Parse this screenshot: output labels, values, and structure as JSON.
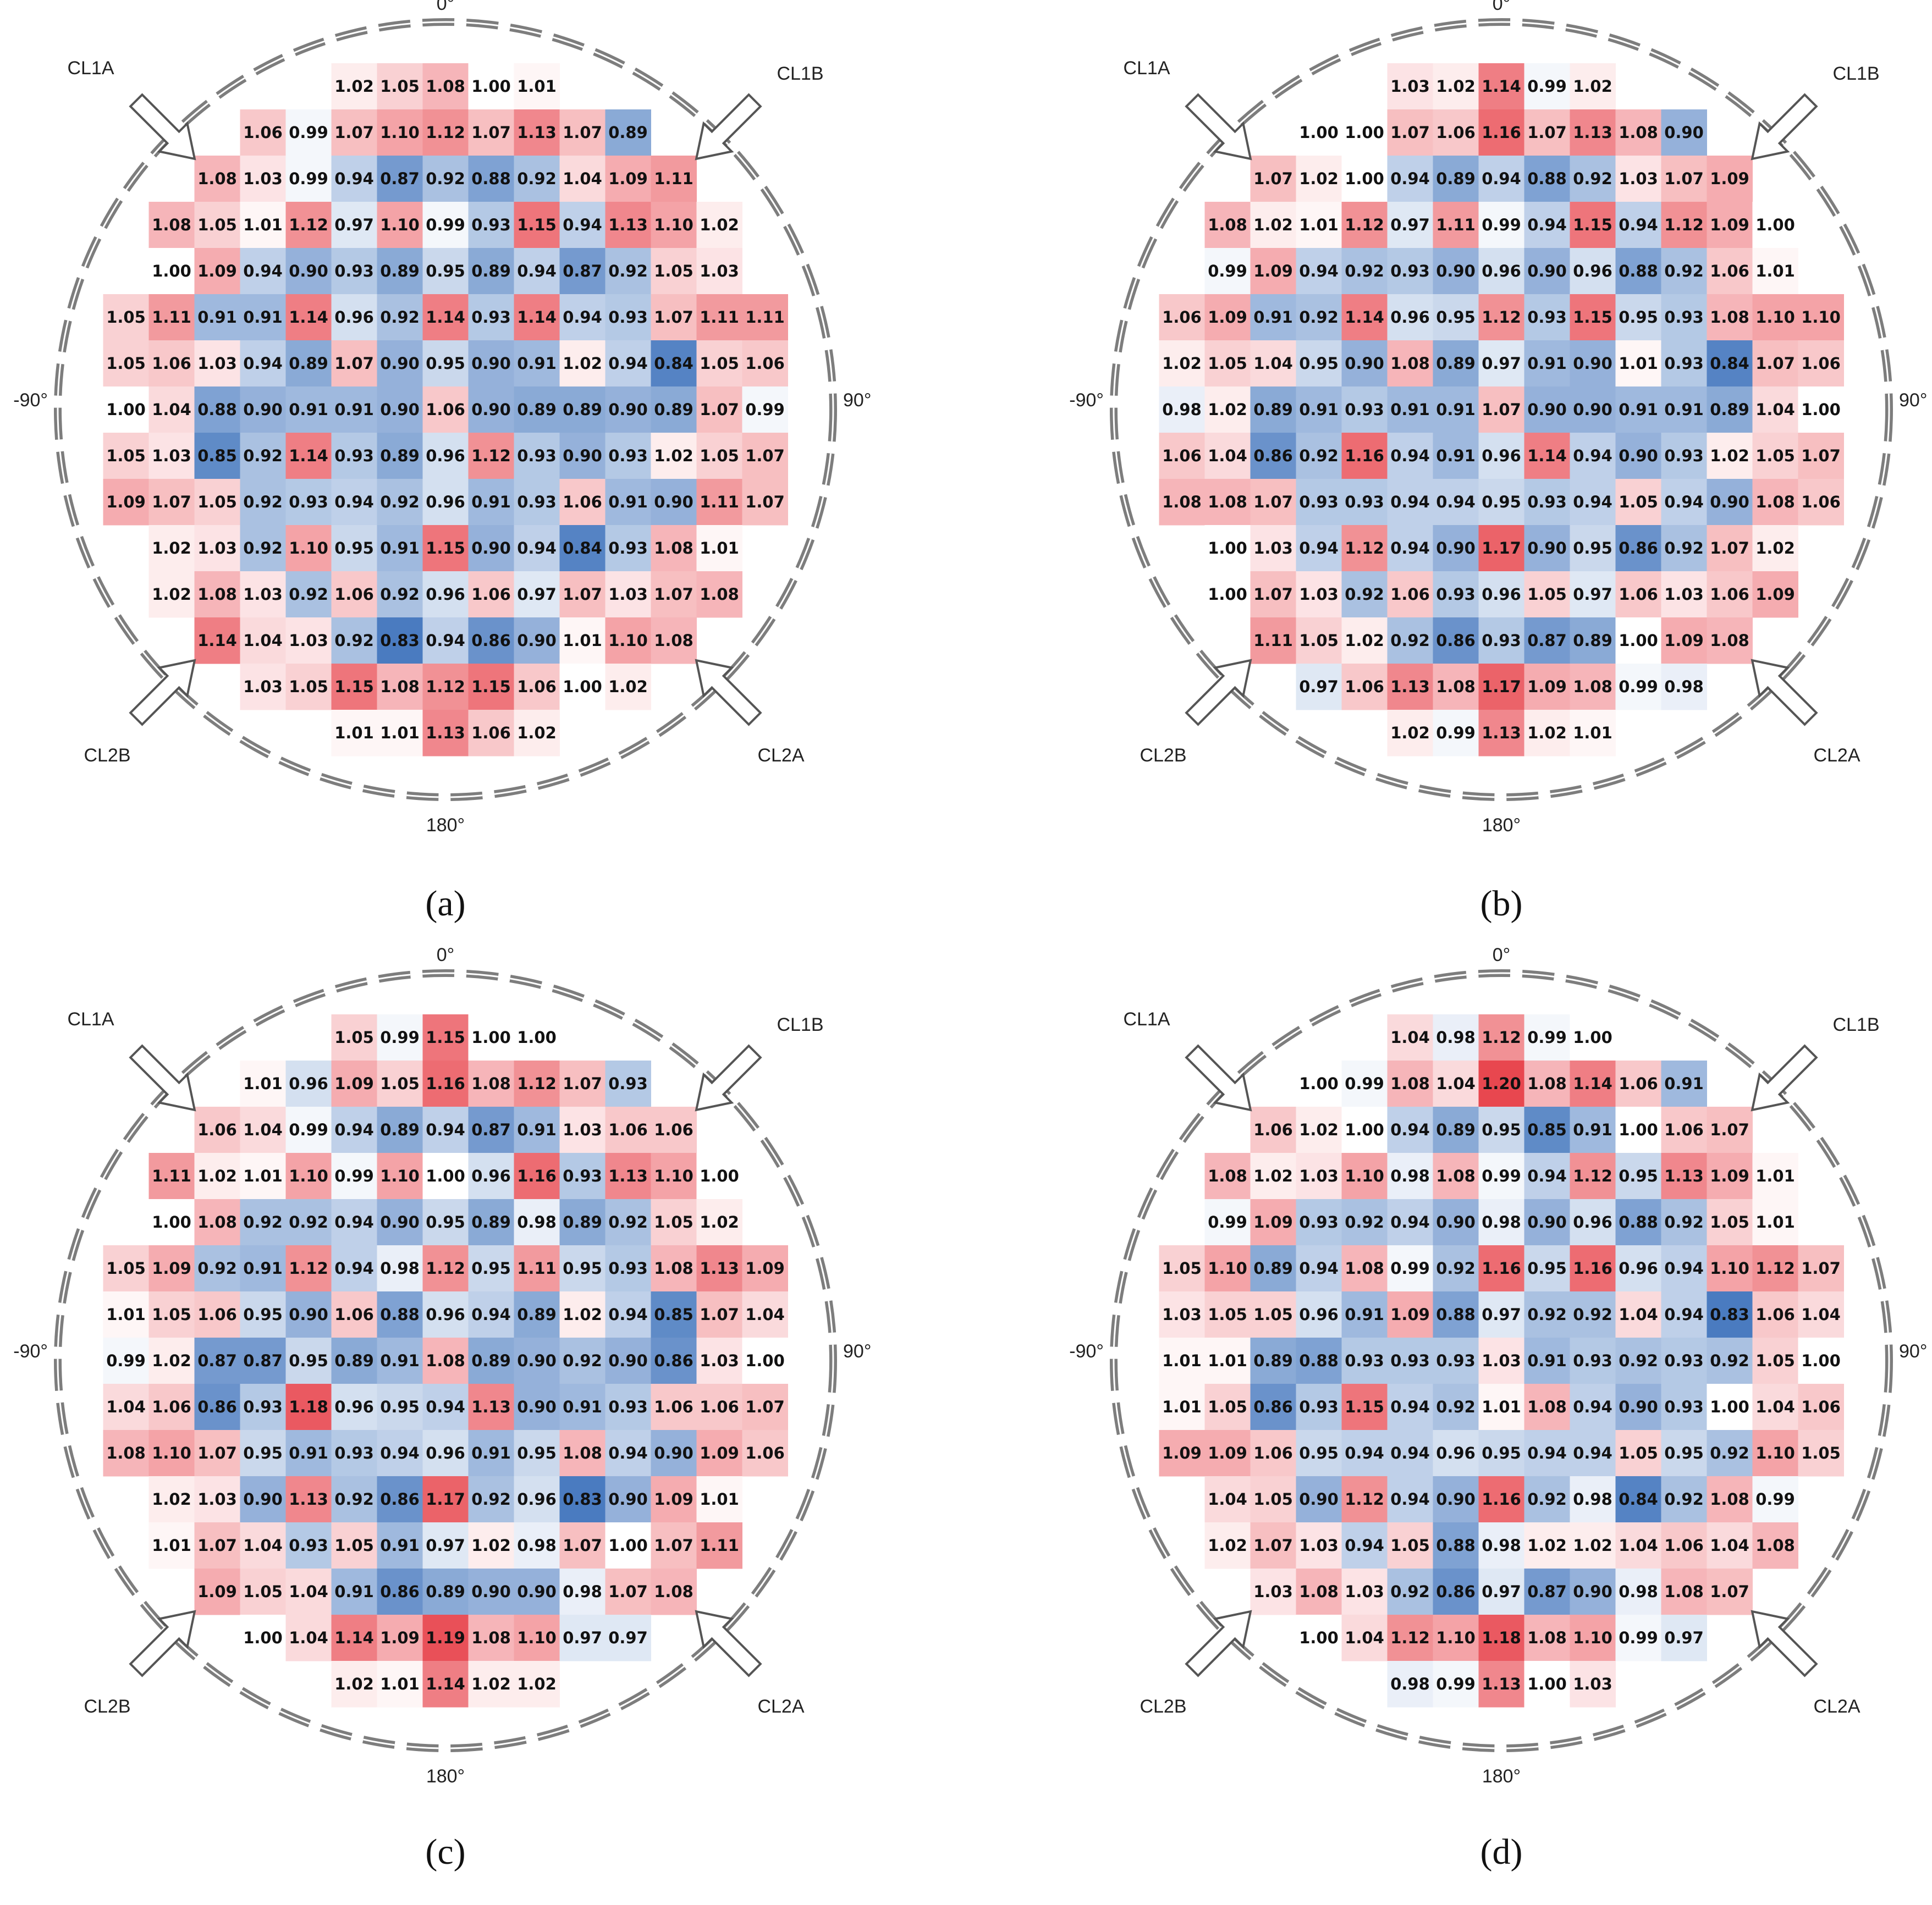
{
  "figure": {
    "angle_labels": {
      "top": "0°",
      "bottom": "180°",
      "left": "-90°",
      "right": "90°"
    },
    "arrow_labels": {
      "top_left": "CL1A",
      "top_right": "CL1B",
      "bottom_left": "CL2B",
      "bottom_right": "CL2A"
    },
    "colors": {
      "low": "#4a7bc0",
      "mid": "#ffffff",
      "high": "#e8474f",
      "ring": "#7d7d7d",
      "arrow": "#555555",
      "text": "#111111"
    }
  },
  "chart_data": [
    {
      "type": "heatmap",
      "caption": "(a)",
      "color_scale": {
        "min": 0.83,
        "center": 1.0,
        "max": 1.2
      },
      "rows": [
        {
          "start": 5,
          "values": [
            1.02,
            1.05,
            1.08,
            1.0,
            1.01
          ]
        },
        {
          "start": 3,
          "values": [
            1.06,
            0.99,
            1.07,
            1.1,
            1.12,
            1.07,
            1.13,
            1.07,
            0.89
          ]
        },
        {
          "start": 2,
          "values": [
            1.08,
            1.03,
            0.99,
            0.94,
            0.87,
            0.92,
            0.88,
            0.92,
            1.04,
            1.09,
            1.11
          ]
        },
        {
          "start": 1,
          "values": [
            1.08,
            1.05,
            1.01,
            1.12,
            0.97,
            1.1,
            0.99,
            0.93,
            1.15,
            0.94,
            1.13,
            1.1,
            1.02
          ]
        },
        {
          "start": 1,
          "values": [
            1.0,
            1.09,
            0.94,
            0.9,
            0.93,
            0.89,
            0.95,
            0.89,
            0.94,
            0.87,
            0.92,
            1.05,
            1.03
          ]
        },
        {
          "start": 0,
          "values": [
            1.05,
            1.11,
            0.91,
            0.91,
            1.14,
            0.96,
            0.92,
            1.14,
            0.93,
            1.14,
            0.94,
            0.93,
            1.07,
            1.11,
            1.11
          ]
        },
        {
          "start": 0,
          "values": [
            1.05,
            1.06,
            1.03,
            0.94,
            0.89,
            1.07,
            0.9,
            0.95,
            0.9,
            0.91,
            1.02,
            0.94,
            0.84,
            1.05,
            1.06
          ]
        },
        {
          "start": 0,
          "values": [
            1.0,
            1.04,
            0.88,
            0.9,
            0.91,
            0.91,
            0.9,
            1.06,
            0.9,
            0.89,
            0.89,
            0.9,
            0.89,
            1.07,
            0.99
          ]
        },
        {
          "start": 0,
          "values": [
            1.05,
            1.03,
            0.85,
            0.92,
            1.14,
            0.93,
            0.89,
            0.96,
            1.12,
            0.93,
            0.9,
            0.93,
            1.02,
            1.05,
            1.07
          ]
        },
        {
          "start": 0,
          "values": [
            1.09,
            1.07,
            1.05,
            0.92,
            0.93,
            0.94,
            0.92,
            0.96,
            0.91,
            0.93,
            1.06,
            0.91,
            0.9,
            1.11,
            1.07
          ]
        },
        {
          "start": 1,
          "values": [
            1.02,
            1.03,
            0.92,
            1.1,
            0.95,
            0.91,
            1.15,
            0.9,
            0.94,
            0.84,
            0.93,
            1.08,
            1.01
          ]
        },
        {
          "start": 1,
          "values": [
            1.02,
            1.08,
            1.03,
            0.92,
            1.06,
            0.92,
            0.96,
            1.06,
            0.97,
            1.07,
            1.03,
            1.07,
            1.08
          ]
        },
        {
          "start": 2,
          "values": [
            1.14,
            1.04,
            1.03,
            0.92,
            0.83,
            0.94,
            0.86,
            0.9,
            1.01,
            1.1,
            1.08
          ]
        },
        {
          "start": 3,
          "values": [
            1.03,
            1.05,
            1.15,
            1.08,
            1.12,
            1.15,
            1.06,
            1.0,
            1.02
          ]
        },
        {
          "start": 5,
          "values": [
            1.01,
            1.01,
            1.13,
            1.06,
            1.02
          ]
        }
      ]
    },
    {
      "type": "heatmap",
      "caption": "(b)",
      "color_scale": {
        "min": 0.83,
        "center": 1.0,
        "max": 1.2
      },
      "rows": [
        {
          "start": 5,
          "values": [
            1.03,
            1.02,
            1.14,
            0.99,
            1.02
          ]
        },
        {
          "start": 3,
          "values": [
            1.0,
            1.0,
            1.07,
            1.06,
            1.16,
            1.07,
            1.13,
            1.08,
            0.9
          ]
        },
        {
          "start": 2,
          "values": [
            1.07,
            1.02,
            1.0,
            0.94,
            0.89,
            0.94,
            0.88,
            0.92,
            1.03,
            1.07,
            1.09
          ]
        },
        {
          "start": 1,
          "values": [
            1.08,
            1.02,
            1.01,
            1.12,
            0.97,
            1.11,
            0.99,
            0.94,
            1.15,
            0.94,
            1.12,
            1.09,
            1.0
          ]
        },
        {
          "start": 1,
          "values": [
            0.99,
            1.09,
            0.94,
            0.92,
            0.93,
            0.9,
            0.96,
            0.9,
            0.96,
            0.88,
            0.92,
            1.06,
            1.01
          ]
        },
        {
          "start": 0,
          "values": [
            1.06,
            1.09,
            0.91,
            0.92,
            1.14,
            0.96,
            0.95,
            1.12,
            0.93,
            1.15,
            0.95,
            0.93,
            1.08,
            1.1,
            1.1
          ]
        },
        {
          "start": 0,
          "values": [
            1.02,
            1.05,
            1.04,
            0.95,
            0.9,
            1.08,
            0.89,
            0.97,
            0.91,
            0.9,
            1.01,
            0.93,
            0.84,
            1.07,
            1.06
          ]
        },
        {
          "start": 0,
          "values": [
            0.98,
            1.02,
            0.89,
            0.91,
            0.93,
            0.91,
            0.91,
            1.07,
            0.9,
            0.9,
            0.91,
            0.91,
            0.89,
            1.04,
            1.0
          ]
        },
        {
          "start": 0,
          "values": [
            1.06,
            1.04,
            0.86,
            0.92,
            1.16,
            0.94,
            0.91,
            0.96,
            1.14,
            0.94,
            0.9,
            0.93,
            1.02,
            1.05,
            1.07
          ]
        },
        {
          "start": 0,
          "values": [
            1.08,
            1.08,
            1.07,
            0.93,
            0.93,
            0.94,
            0.94,
            0.95,
            0.93,
            0.94,
            1.05,
            0.94,
            0.9,
            1.08,
            1.06
          ]
        },
        {
          "start": 1,
          "values": [
            1.0,
            1.03,
            0.94,
            1.12,
            0.94,
            0.9,
            1.17,
            0.9,
            0.95,
            0.86,
            0.92,
            1.07,
            1.02
          ]
        },
        {
          "start": 1,
          "values": [
            1.0,
            1.07,
            1.03,
            0.92,
            1.06,
            0.93,
            0.96,
            1.05,
            0.97,
            1.06,
            1.03,
            1.06,
            1.09
          ]
        },
        {
          "start": 2,
          "values": [
            1.11,
            1.05,
            1.02,
            0.92,
            0.86,
            0.93,
            0.87,
            0.89,
            1.0,
            1.09,
            1.08
          ]
        },
        {
          "start": 3,
          "values": [
            0.97,
            1.06,
            1.13,
            1.08,
            1.17,
            1.09,
            1.08,
            0.99,
            0.98
          ]
        },
        {
          "start": 5,
          "values": [
            1.02,
            0.99,
            1.13,
            1.02,
            1.01
          ]
        }
      ]
    },
    {
      "type": "heatmap",
      "caption": "(c)",
      "color_scale": {
        "min": 0.83,
        "center": 1.0,
        "max": 1.2
      },
      "rows": [
        {
          "start": 5,
          "values": [
            1.05,
            0.99,
            1.15,
            1.0,
            1.0
          ]
        },
        {
          "start": 3,
          "values": [
            1.01,
            0.96,
            1.09,
            1.05,
            1.16,
            1.08,
            1.12,
            1.07,
            0.93
          ]
        },
        {
          "start": 2,
          "values": [
            1.06,
            1.04,
            0.99,
            0.94,
            0.89,
            0.94,
            0.87,
            0.91,
            1.03,
            1.06,
            1.06
          ]
        },
        {
          "start": 1,
          "values": [
            1.11,
            1.02,
            1.01,
            1.1,
            0.99,
            1.1,
            1.0,
            0.96,
            1.16,
            0.93,
            1.13,
            1.1,
            1.0
          ]
        },
        {
          "start": 1,
          "values": [
            1.0,
            1.08,
            0.92,
            0.92,
            0.94,
            0.9,
            0.95,
            0.89,
            0.98,
            0.89,
            0.92,
            1.05,
            1.02
          ]
        },
        {
          "start": 0,
          "values": [
            1.05,
            1.09,
            0.92,
            0.91,
            1.12,
            0.94,
            0.98,
            1.12,
            0.95,
            1.11,
            0.95,
            0.93,
            1.08,
            1.13,
            1.09
          ]
        },
        {
          "start": 0,
          "values": [
            1.01,
            1.05,
            1.06,
            0.95,
            0.9,
            1.06,
            0.88,
            0.96,
            0.94,
            0.89,
            1.02,
            0.94,
            0.85,
            1.07,
            1.04
          ]
        },
        {
          "start": 0,
          "values": [
            0.99,
            1.02,
            0.87,
            0.87,
            0.95,
            0.89,
            0.91,
            1.08,
            0.89,
            0.9,
            0.92,
            0.9,
            0.86,
            1.03,
            1.0
          ]
        },
        {
          "start": 0,
          "values": [
            1.04,
            1.06,
            0.86,
            0.93,
            1.18,
            0.96,
            0.95,
            0.94,
            1.13,
            0.9,
            0.91,
            0.93,
            1.06,
            1.06,
            1.07
          ]
        },
        {
          "start": 0,
          "values": [
            1.08,
            1.1,
            1.07,
            0.95,
            0.91,
            0.93,
            0.94,
            0.96,
            0.91,
            0.95,
            1.08,
            0.94,
            0.9,
            1.09,
            1.06
          ]
        },
        {
          "start": 1,
          "values": [
            1.02,
            1.03,
            0.9,
            1.13,
            0.92,
            0.86,
            1.17,
            0.92,
            0.96,
            0.83,
            0.9,
            1.09,
            1.01
          ]
        },
        {
          "start": 1,
          "values": [
            1.01,
            1.07,
            1.04,
            0.93,
            1.05,
            0.91,
            0.97,
            1.02,
            0.98,
            1.07,
            1.0,
            1.07,
            1.11
          ]
        },
        {
          "start": 2,
          "values": [
            1.09,
            1.05,
            1.04,
            0.91,
            0.86,
            0.89,
            0.9,
            0.9,
            0.98,
            1.07,
            1.08
          ]
        },
        {
          "start": 3,
          "values": [
            1.0,
            1.04,
            1.14,
            1.09,
            1.19,
            1.08,
            1.1,
            0.97,
            0.97
          ]
        },
        {
          "start": 5,
          "values": [
            1.02,
            1.01,
            1.14,
            1.02,
            1.02
          ]
        }
      ]
    },
    {
      "type": "heatmap",
      "caption": "(d)",
      "color_scale": {
        "min": 0.83,
        "center": 1.0,
        "max": 1.2
      },
      "rows": [
        {
          "start": 5,
          "values": [
            1.04,
            0.98,
            1.12,
            0.99,
            1.0
          ]
        },
        {
          "start": 3,
          "values": [
            1.0,
            0.99,
            1.08,
            1.04,
            1.2,
            1.08,
            1.14,
            1.06,
            0.91
          ]
        },
        {
          "start": 2,
          "values": [
            1.06,
            1.02,
            1.0,
            0.94,
            0.89,
            0.95,
            0.85,
            0.91,
            1.0,
            1.06,
            1.07
          ]
        },
        {
          "start": 1,
          "values": [
            1.08,
            1.02,
            1.03,
            1.1,
            0.98,
            1.08,
            0.99,
            0.94,
            1.12,
            0.95,
            1.13,
            1.09,
            1.01
          ]
        },
        {
          "start": 1,
          "values": [
            0.99,
            1.09,
            0.93,
            0.92,
            0.94,
            0.9,
            0.98,
            0.9,
            0.96,
            0.88,
            0.92,
            1.05,
            1.01
          ]
        },
        {
          "start": 0,
          "values": [
            1.05,
            1.1,
            0.89,
            0.94,
            1.08,
            0.99,
            0.92,
            1.16,
            0.95,
            1.16,
            0.96,
            0.94,
            1.1,
            1.12,
            1.07
          ]
        },
        {
          "start": 0,
          "values": [
            1.03,
            1.05,
            1.05,
            0.96,
            0.91,
            1.09,
            0.88,
            0.97,
            0.92,
            0.92,
            1.04,
            0.94,
            0.83,
            1.06,
            1.04
          ]
        },
        {
          "start": 0,
          "values": [
            1.01,
            1.01,
            0.89,
            0.88,
            0.93,
            0.93,
            0.93,
            1.03,
            0.91,
            0.93,
            0.92,
            0.93,
            0.92,
            1.05,
            1.0
          ]
        },
        {
          "start": 0,
          "values": [
            1.01,
            1.05,
            0.86,
            0.93,
            1.15,
            0.94,
            0.92,
            1.01,
            1.08,
            0.94,
            0.9,
            0.93,
            1.0,
            1.04,
            1.06
          ]
        },
        {
          "start": 0,
          "values": [
            1.09,
            1.09,
            1.06,
            0.95,
            0.94,
            0.94,
            0.96,
            0.95,
            0.94,
            0.94,
            1.05,
            0.95,
            0.92,
            1.1,
            1.05
          ]
        },
        {
          "start": 1,
          "values": [
            1.04,
            1.05,
            0.9,
            1.12,
            0.94,
            0.9,
            1.16,
            0.92,
            0.98,
            0.84,
            0.92,
            1.08,
            0.99
          ]
        },
        {
          "start": 1,
          "values": [
            1.02,
            1.07,
            1.03,
            0.94,
            1.05,
            0.88,
            0.98,
            1.02,
            1.02,
            1.04,
            1.06,
            1.04,
            1.08
          ]
        },
        {
          "start": 2,
          "values": [
            1.03,
            1.08,
            1.03,
            0.92,
            0.86,
            0.97,
            0.87,
            0.9,
            0.98,
            1.08,
            1.07
          ]
        },
        {
          "start": 3,
          "values": [
            1.0,
            1.04,
            1.12,
            1.1,
            1.18,
            1.08,
            1.1,
            0.99,
            0.97
          ]
        },
        {
          "start": 5,
          "values": [
            0.98,
            0.99,
            1.13,
            1.0,
            1.03
          ]
        }
      ]
    }
  ]
}
